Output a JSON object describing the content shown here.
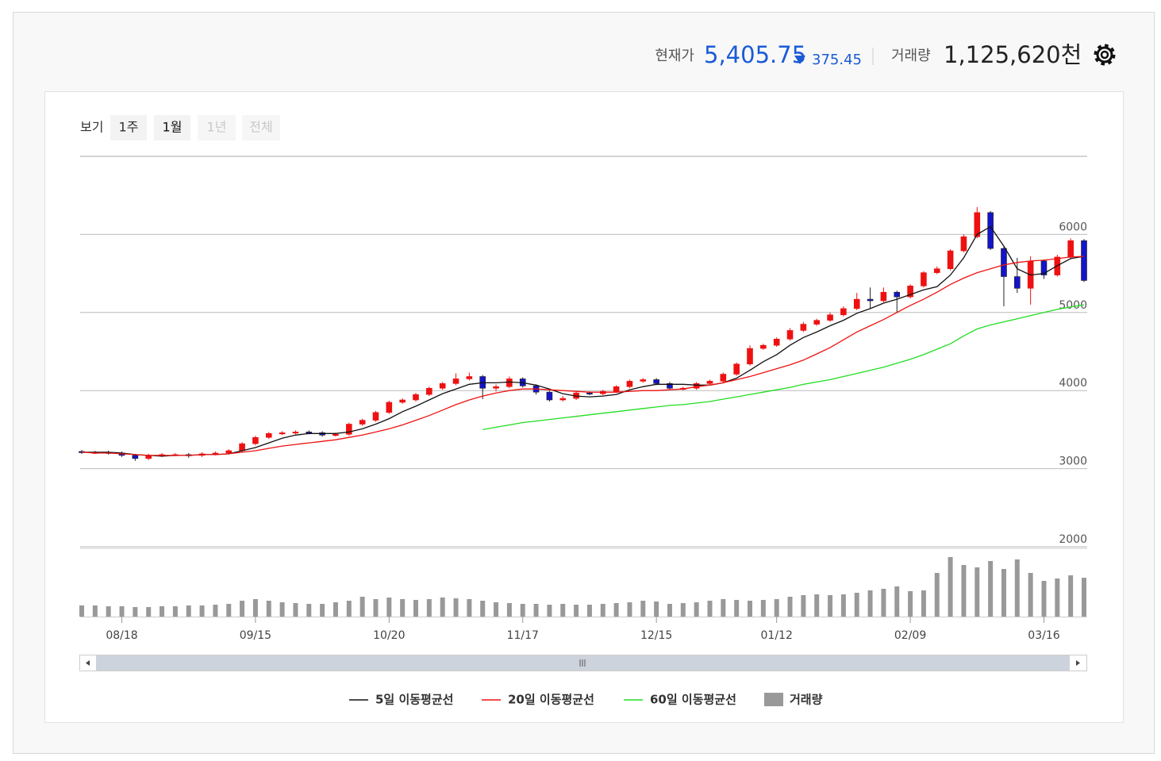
{
  "header": {
    "price_label": "현재가",
    "price": "5,405.75",
    "change": "375.45",
    "volume_label": "거래량",
    "volume": "1,125,620천"
  },
  "controls": {
    "label": "보기",
    "buttons": [
      "1주",
      "1월",
      "1년",
      "전체"
    ]
  },
  "chart_data": {
    "type": "candlestick",
    "categories": [
      null,
      null,
      null,
      "08/18",
      null,
      null,
      null,
      null,
      null,
      null,
      null,
      null,
      null,
      "09/15",
      null,
      null,
      null,
      null,
      null,
      null,
      null,
      null,
      null,
      "10/20",
      null,
      null,
      null,
      null,
      null,
      null,
      null,
      null,
      null,
      "11/17",
      null,
      null,
      null,
      null,
      null,
      null,
      null,
      null,
      null,
      "12/15",
      null,
      null,
      null,
      null,
      null,
      null,
      null,
      null,
      "01/12",
      null,
      null,
      null,
      null,
      null,
      null,
      null,
      null,
      null,
      "02/09",
      null,
      null,
      null,
      null,
      null,
      null,
      null,
      null,
      null,
      "03/16",
      null,
      null,
      null
    ],
    "open": [
      3220,
      3210,
      3210,
      3200,
      3170,
      3130,
      3170,
      3180,
      3180,
      3170,
      3190,
      3200,
      3230,
      3320,
      3400,
      3450,
      3460,
      3470,
      3460,
      3430,
      3440,
      3570,
      3620,
      3720,
      3850,
      3880,
      3950,
      4030,
      4090,
      4150,
      4180,
      4030,
      4050,
      4150,
      4060,
      3980,
      3880,
      3900,
      3970,
      3960,
      3990,
      4050,
      4120,
      4140,
      4090,
      4030,
      4030,
      4090,
      4120,
      4210,
      4340,
      4540,
      4580,
      4660,
      4770,
      4850,
      4900,
      4970,
      5050,
      5170,
      5150,
      5260,
      5200,
      5340,
      5510,
      5560,
      5790,
      5970,
      6280,
      5820,
      5460,
      5310,
      5660,
      5480,
      5710,
      5920
    ],
    "high": [
      3240,
      3230,
      3230,
      3220,
      3190,
      3190,
      3200,
      3200,
      3200,
      3210,
      3220,
      3250,
      3340,
      3420,
      3470,
      3480,
      3490,
      3490,
      3480,
      3460,
      3590,
      3640,
      3740,
      3870,
      3900,
      3970,
      4050,
      4110,
      4220,
      4230,
      4200,
      4080,
      4180,
      4170,
      4080,
      4000,
      3930,
      3990,
      3990,
      4010,
      4070,
      4140,
      4160,
      4160,
      4110,
      4050,
      4110,
      4140,
      4230,
      4360,
      4580,
      4600,
      4680,
      4800,
      4880,
      4920,
      5000,
      5080,
      5250,
      5320,
      5320,
      5280,
      5360,
      5530,
      5590,
      5810,
      6000,
      6350,
      6300,
      5840,
      5700,
      5720,
      5680,
      5740,
      5950,
      5940
    ],
    "low": [
      3190,
      3190,
      3180,
      3150,
      3100,
      3110,
      3150,
      3160,
      3140,
      3150,
      3170,
      3180,
      3210,
      3300,
      3380,
      3430,
      3440,
      3440,
      3410,
      3410,
      3420,
      3550,
      3600,
      3700,
      3830,
      3860,
      3930,
      4010,
      4070,
      4130,
      3890,
      3990,
      4030,
      4040,
      3950,
      3860,
      3860,
      3880,
      3940,
      3940,
      3970,
      4030,
      4100,
      4070,
      4010,
      4000,
      4010,
      4070,
      4100,
      4190,
      4320,
      4520,
      4560,
      4640,
      4750,
      4830,
      4880,
      4950,
      5030,
      5050,
      5130,
      5000,
      5180,
      5320,
      5490,
      5540,
      5770,
      5950,
      5800,
      5080,
      5250,
      5100,
      5430,
      5460,
      5690,
      5390
    ],
    "close": [
      3210,
      3210,
      3200,
      3170,
      3130,
      3170,
      3180,
      3180,
      3170,
      3190,
      3200,
      3230,
      3320,
      3400,
      3450,
      3460,
      3470,
      3460,
      3430,
      3440,
      3570,
      3620,
      3720,
      3850,
      3880,
      3950,
      4030,
      4090,
      4150,
      4180,
      4030,
      4050,
      4150,
      4060,
      3980,
      3880,
      3900,
      3970,
      3960,
      3990,
      4050,
      4120,
      4140,
      4090,
      4030,
      4030,
      4090,
      4120,
      4210,
      4340,
      4540,
      4580,
      4660,
      4770,
      4850,
      4900,
      4970,
      5050,
      5170,
      5150,
      5260,
      5200,
      5340,
      5510,
      5560,
      5790,
      5970,
      6280,
      5820,
      5460,
      5310,
      5660,
      5480,
      5710,
      5920,
      5410
    ],
    "volume": [
      322000,
      322000,
      299000,
      299000,
      276000,
      276000,
      299000,
      299000,
      322000,
      322000,
      345000,
      368000,
      460000,
      506000,
      460000,
      414000,
      391000,
      368000,
      368000,
      414000,
      460000,
      575000,
      506000,
      552000,
      506000,
      483000,
      506000,
      552000,
      529000,
      506000,
      460000,
      414000,
      391000,
      368000,
      368000,
      345000,
      368000,
      345000,
      345000,
      368000,
      391000,
      414000,
      460000,
      437000,
      368000,
      391000,
      414000,
      460000,
      506000,
      483000,
      460000,
      483000,
      506000,
      575000,
      621000,
      644000,
      621000,
      644000,
      690000,
      759000,
      805000,
      874000,
      736000,
      759000,
      1265000,
      1725000,
      1495000,
      1426000,
      1610000,
      1380000,
      1656000,
      1265000,
      1035000,
      1104000,
      1196000,
      1125620
    ],
    "volume_name": "거래량",
    "volume_color": "#999999",
    "volume_ylim": [
      0,
      1840000
    ],
    "up_color": "#ee1111",
    "down_color": "#1414c8",
    "ylim": [
      2000,
      7000
    ],
    "yticks": [
      2000,
      3000,
      4000,
      5000,
      6000
    ],
    "grid": true,
    "series": [
      {
        "name": "5일 이동평균선",
        "color": "#111111",
        "values": [
          3210,
          3210,
          3210,
          3200,
          3180,
          3170,
          3160,
          3170,
          3170,
          3180,
          3180,
          3190,
          3230,
          3270,
          3330,
          3390,
          3430,
          3450,
          3450,
          3450,
          3470,
          3510,
          3570,
          3640,
          3730,
          3800,
          3880,
          3960,
          4020,
          4080,
          4100,
          4100,
          4110,
          4100,
          4070,
          4020,
          3960,
          3930,
          3920,
          3930,
          3950,
          4010,
          4050,
          4080,
          4080,
          4080,
          4070,
          4070,
          4100,
          4160,
          4260,
          4370,
          4460,
          4580,
          4680,
          4750,
          4830,
          4900,
          4990,
          5050,
          5120,
          5170,
          5230,
          5290,
          5330,
          5480,
          5700,
          6000,
          6100,
          5850,
          5560,
          5480,
          5500,
          5600,
          5690,
          5720
        ]
      },
      {
        "name": "20일 이동평균선",
        "color": "#ee1111",
        "values": [
          3210,
          3200,
          3200,
          3190,
          3180,
          3170,
          3170,
          3170,
          3170,
          3180,
          3180,
          3190,
          3210,
          3230,
          3260,
          3290,
          3310,
          3330,
          3350,
          3370,
          3400,
          3430,
          3470,
          3510,
          3560,
          3620,
          3680,
          3750,
          3820,
          3880,
          3930,
          3970,
          4000,
          4020,
          4020,
          4010,
          4000,
          3990,
          3980,
          3980,
          3980,
          3990,
          4000,
          4000,
          4010,
          4020,
          4050,
          4070,
          4100,
          4140,
          4180,
          4230,
          4280,
          4330,
          4390,
          4470,
          4550,
          4650,
          4750,
          4830,
          4910,
          5000,
          5090,
          5170,
          5260,
          5360,
          5440,
          5510,
          5560,
          5610,
          5640,
          5660,
          5670,
          5690,
          5710,
          5720
        ]
      },
      {
        "name": "60일 이동평균선",
        "color": "#22dd22",
        "values": [
          null,
          null,
          null,
          null,
          null,
          null,
          null,
          null,
          null,
          null,
          null,
          null,
          null,
          null,
          null,
          null,
          null,
          null,
          null,
          null,
          null,
          null,
          null,
          null,
          null,
          null,
          null,
          null,
          null,
          null,
          3500,
          3530,
          3560,
          3590,
          3610,
          3630,
          3650,
          3670,
          3690,
          3710,
          3730,
          3750,
          3770,
          3790,
          3810,
          3820,
          3840,
          3860,
          3890,
          3920,
          3950,
          3980,
          4010,
          4040,
          4080,
          4110,
          4140,
          4180,
          4220,
          4260,
          4300,
          4350,
          4400,
          4460,
          4530,
          4600,
          4700,
          4790,
          4840,
          4880,
          4920,
          4960,
          5000,
          5040,
          5070,
          5100
        ]
      }
    ]
  }
}
